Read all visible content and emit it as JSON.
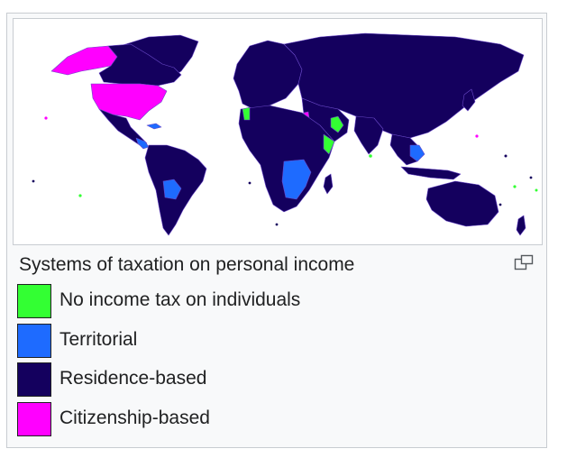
{
  "caption": "Systems of taxation on personal income",
  "enlarge_icon": "enlarge-icon",
  "colors": {
    "no_income_tax": "#33ff33",
    "territorial": "#1e6bff",
    "residence": "#14005e",
    "citizenship": "#ff00ff",
    "ocean": "#ffffff",
    "border": "#6a49c8"
  },
  "legend": [
    {
      "label": "No income tax on individuals",
      "color": "#33ff33"
    },
    {
      "label": "Territorial",
      "color": "#1e6bff"
    },
    {
      "label": "Residence-based",
      "color": "#14005e"
    },
    {
      "label": "Citizenship-based",
      "color": "#ff00ff"
    }
  ]
}
